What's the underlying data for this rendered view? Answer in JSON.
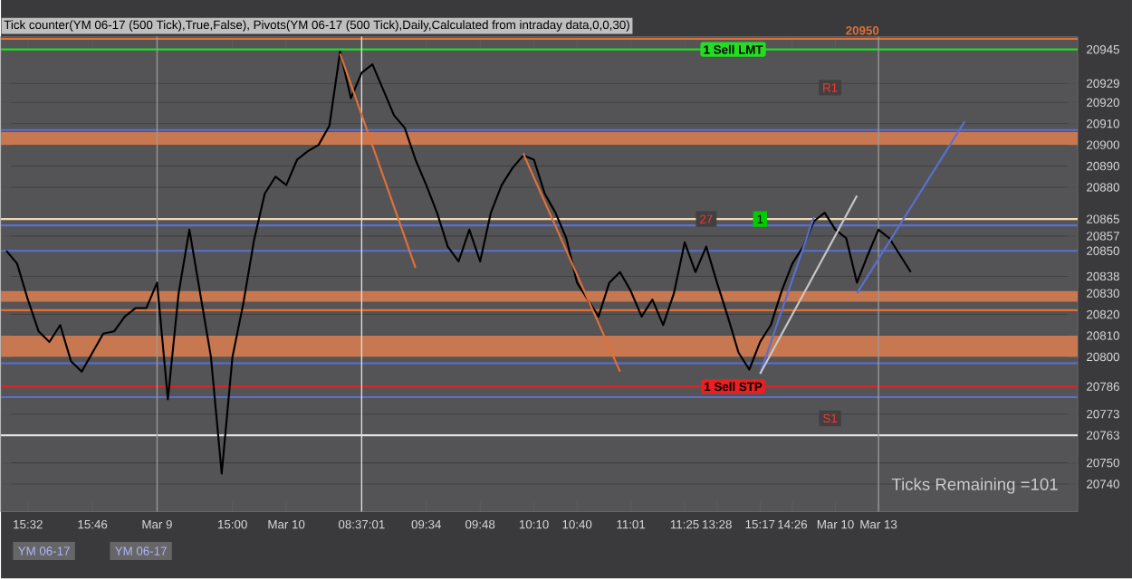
{
  "chart_data": {
    "type": "line",
    "title": "Tick counter(YM 06-17 (500 Tick),True,False), Pivots(YM 06-17 (500 Tick),Daily,Calculated from intraday data,0,0,30)",
    "categories": [
      null,
      null,
      "15:32",
      null,
      null,
      null,
      null,
      null,
      "15:46",
      null,
      null,
      null,
      null,
      null,
      "Mar 9",
      null,
      null,
      null,
      null,
      null,
      null,
      "15:00",
      null,
      null,
      null,
      null,
      "Mar 10",
      null,
      null,
      null,
      null,
      null,
      null,
      "08:37:01",
      null,
      null,
      null,
      null,
      null,
      "09:34",
      null,
      null,
      null,
      null,
      "09:48",
      null,
      null,
      null,
      null,
      "10:10",
      null,
      null,
      null,
      "10:40",
      null,
      null,
      null,
      null,
      "11:01",
      null,
      null,
      null,
      null,
      "11:25",
      null,
      null,
      "13:28",
      null,
      null,
      null,
      "15:17",
      null,
      null,
      "14:26",
      null,
      null,
      null,
      "Mar 10",
      null,
      null,
      null,
      "Mar 13",
      null,
      null,
      null,
      null,
      null,
      null,
      null,
      null,
      null,
      null,
      null,
      null,
      null,
      null,
      null,
      null,
      null,
      null
    ],
    "series": [
      {
        "color": "#000000",
        "values": [
          20850,
          20844,
          20827,
          20812,
          20807,
          20815,
          20798,
          20793,
          20802,
          20811,
          20812,
          20819,
          20823,
          20823,
          20835,
          20780,
          20830,
          20860,
          20830,
          20800,
          20745,
          20800,
          20825,
          20855,
          20877,
          20885,
          20881,
          20893,
          20897,
          20900,
          20909,
          20944,
          20922,
          20934,
          20938,
          20926,
          20914,
          20908,
          20893,
          20881,
          20868,
          20852,
          20845,
          20860,
          20845,
          20868,
          20881,
          20889,
          20895,
          20893,
          20877,
          20868,
          20856,
          20835,
          20827,
          20819,
          20835,
          20840,
          20831,
          20819,
          20827,
          20815,
          20830,
          20854,
          20840,
          20852,
          20835,
          20819,
          20802,
          20794,
          20807,
          20815,
          20831,
          20844,
          20852,
          20864,
          20868,
          20860,
          20856,
          20835,
          20848,
          20860,
          20856,
          20848,
          20840,
          null,
          null,
          null,
          null,
          null,
          null,
          null,
          null,
          null,
          null,
          null,
          null,
          null,
          null,
          null
        ]
      },
      {
        "color": "#e0703a",
        "values": [
          null,
          null,
          null,
          null,
          null,
          null,
          null,
          null,
          null,
          null,
          null,
          null,
          null,
          null,
          null,
          null,
          null,
          null,
          null,
          null,
          null,
          null,
          null,
          null,
          null,
          null,
          null,
          null,
          null,
          null,
          null,
          20943,
          null,
          null,
          null,
          null,
          null,
          null,
          20842,
          null,
          null,
          null,
          null,
          null,
          null,
          null,
          null,
          null,
          null,
          null,
          null,
          null,
          null,
          null,
          null,
          null,
          null,
          null,
          null,
          null,
          null,
          null,
          null,
          null,
          null,
          null,
          null,
          null,
          null,
          null,
          null,
          null,
          null,
          null,
          null,
          null,
          null,
          null,
          null,
          null,
          null,
          null,
          null,
          null,
          null,
          null,
          null,
          null,
          null,
          null,
          null,
          null,
          null,
          null,
          null,
          null,
          null,
          null,
          null,
          null
        ]
      },
      {
        "color": "#e0703a",
        "values": [
          null,
          null,
          null,
          null,
          null,
          null,
          null,
          null,
          null,
          null,
          null,
          null,
          null,
          null,
          null,
          null,
          null,
          null,
          null,
          null,
          null,
          null,
          null,
          null,
          null,
          null,
          null,
          null,
          null,
          null,
          null,
          null,
          null,
          null,
          null,
          null,
          null,
          null,
          null,
          null,
          null,
          null,
          null,
          null,
          null,
          null,
          null,
          null,
          20896,
          null,
          null,
          null,
          null,
          null,
          null,
          null,
          null,
          20793,
          null,
          null,
          null,
          null,
          null,
          null,
          null,
          null,
          null,
          null,
          null,
          null,
          null,
          null,
          null,
          null,
          null,
          null,
          null,
          null,
          null,
          null,
          null,
          null,
          null,
          null,
          null,
          null,
          null,
          null,
          null,
          null,
          null,
          null,
          null,
          null,
          null,
          null,
          null,
          null,
          null,
          null
        ]
      },
      {
        "color": "#5a6fd0",
        "values": [
          null,
          null,
          null,
          null,
          null,
          null,
          null,
          null,
          null,
          null,
          null,
          null,
          null,
          null,
          null,
          null,
          null,
          null,
          null,
          null,
          null,
          null,
          null,
          null,
          null,
          null,
          null,
          null,
          null,
          null,
          null,
          null,
          null,
          null,
          null,
          null,
          null,
          null,
          null,
          null,
          null,
          null,
          null,
          null,
          null,
          null,
          null,
          null,
          null,
          null,
          null,
          null,
          null,
          null,
          null,
          null,
          null,
          null,
          null,
          null,
          null,
          null,
          null,
          null,
          null,
          null,
          null,
          null,
          null,
          null,
          20792,
          null,
          null,
          null,
          null,
          20866,
          null,
          null,
          null,
          null,
          null,
          null,
          null,
          null,
          null,
          null,
          null,
          null,
          null,
          null,
          null,
          null,
          null,
          null,
          null,
          null,
          null,
          null,
          null,
          null
        ]
      },
      {
        "color": "#c8c8c8",
        "values": [
          null,
          null,
          null,
          null,
          null,
          null,
          null,
          null,
          null,
          null,
          null,
          null,
          null,
          null,
          null,
          null,
          null,
          null,
          null,
          null,
          null,
          null,
          null,
          null,
          null,
          null,
          null,
          null,
          null,
          null,
          null,
          null,
          null,
          null,
          null,
          null,
          null,
          null,
          null,
          null,
          null,
          null,
          null,
          null,
          null,
          null,
          null,
          null,
          null,
          null,
          null,
          null,
          null,
          null,
          null,
          null,
          null,
          null,
          null,
          null,
          null,
          null,
          null,
          null,
          null,
          null,
          null,
          null,
          null,
          null,
          20792,
          null,
          null,
          null,
          null,
          null,
          null,
          null,
          null,
          20876,
          null,
          null,
          null,
          null,
          null,
          null,
          null,
          null,
          null,
          null,
          null,
          null,
          null,
          null,
          null,
          null,
          null,
          null,
          null,
          null
        ]
      },
      {
        "color": "#5a6fd0",
        "values": [
          null,
          null,
          null,
          null,
          null,
          null,
          null,
          null,
          null,
          null,
          null,
          null,
          null,
          null,
          null,
          null,
          null,
          null,
          null,
          null,
          null,
          null,
          null,
          null,
          null,
          null,
          null,
          null,
          null,
          null,
          null,
          null,
          null,
          null,
          null,
          null,
          null,
          null,
          null,
          null,
          null,
          null,
          null,
          null,
          null,
          null,
          null,
          null,
          null,
          null,
          null,
          null,
          null,
          null,
          null,
          null,
          null,
          null,
          null,
          null,
          null,
          null,
          null,
          null,
          null,
          null,
          null,
          null,
          null,
          null,
          null,
          null,
          null,
          null,
          null,
          null,
          null,
          null,
          null,
          20830,
          null,
          null,
          null,
          null,
          null,
          null,
          null,
          null,
          null,
          20911,
          null,
          null,
          null,
          null,
          null,
          null,
          null,
          null,
          null,
          null
        ]
      }
    ],
    "ylim": [
      20727,
      20951
    ],
    "yticks": [
      20945,
      20929,
      20920,
      20910,
      20900,
      20890,
      20880,
      20865,
      20857,
      20850,
      20838,
      20830,
      20820,
      20810,
      20800,
      20786,
      20773,
      20763,
      20750,
      20740
    ],
    "grid": "y",
    "ref_lines": [
      {
        "axis": "y",
        "value": 20950,
        "label": "20950",
        "color": "#e0703a"
      },
      {
        "axis": "y",
        "value": 20945,
        "label": "1  Sell LMT",
        "color": "#22dd22"
      },
      {
        "axis": "y",
        "value": 20865,
        "color": "#f0d8b0"
      },
      {
        "axis": "y",
        "value": 20786,
        "label": "1  Sell STP",
        "color": "#e82020"
      },
      {
        "axis": "y",
        "value": 20763,
        "color": "#e0e0e0"
      },
      {
        "axis": "y",
        "value": 20907,
        "color": "#5a6fd0"
      },
      {
        "axis": "y",
        "value": 20862,
        "color": "#5a6fd0"
      },
      {
        "axis": "y",
        "value": 20850,
        "color": "#5a6fd0"
      },
      {
        "axis": "y",
        "value": 20797,
        "color": "#5a6fd0"
      },
      {
        "axis": "y",
        "value": 20781,
        "color": "#5a6fd0"
      },
      {
        "axis": "y",
        "value": 20822,
        "color": "#e0703a"
      },
      {
        "axis": "x",
        "value": "Mar 9",
        "color": "#9a9a9a"
      },
      {
        "axis": "x",
        "value": "08:37:01",
        "color": "#e0e0e0"
      },
      {
        "axis": "x",
        "value": "Mar 13",
        "color": "#9a9a9a"
      }
    ],
    "bands": [
      {
        "axis": "y",
        "from": 20900,
        "to": 20906,
        "color": "#c87850"
      },
      {
        "axis": "y",
        "from": 20826,
        "to": 20831,
        "color": "#c87850"
      },
      {
        "axis": "y",
        "from": 20800,
        "to": 20810,
        "color": "#c87850"
      }
    ],
    "annotations": [
      "Ticks Remaining =101",
      "YM 06-17",
      "YM 06-17",
      {
        "text": "27",
        "y": 20865
      },
      {
        "text": "1",
        "y": 20865
      },
      {
        "text": "R1",
        "y": 20927
      },
      {
        "text": "S1",
        "y": 20771
      }
    ]
  }
}
